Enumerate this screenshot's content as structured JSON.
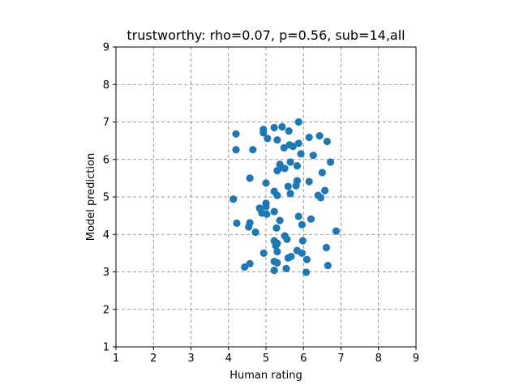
{
  "chart_data": {
    "type": "scatter",
    "title": "trustworthy: rho=0.07, p=0.56, sub=14,all",
    "xlabel": "Human rating",
    "ylabel": "Model prediction",
    "xlim": [
      1,
      9
    ],
    "ylim": [
      1,
      9
    ],
    "xticks": [
      "1",
      "2",
      "3",
      "4",
      "5",
      "6",
      "7",
      "8",
      "9"
    ],
    "yticks": [
      "1",
      "2",
      "3",
      "4",
      "5",
      "6",
      "7",
      "8",
      "9"
    ],
    "grid": true,
    "point_color": "#1f77b4",
    "points": [
      [
        4.2,
        6.68
      ],
      [
        4.2,
        6.26
      ],
      [
        4.65,
        6.26
      ],
      [
        4.93,
        6.8
      ],
      [
        4.93,
        6.71
      ],
      [
        5.04,
        6.56
      ],
      [
        5.22,
        6.85
      ],
      [
        5.3,
        6.52
      ],
      [
        5.43,
        6.87
      ],
      [
        5.61,
        6.76
      ],
      [
        5.87,
        7.0
      ],
      [
        5.48,
        6.31
      ],
      [
        5.63,
        6.39
      ],
      [
        5.72,
        6.35
      ],
      [
        5.87,
        6.43
      ],
      [
        6.15,
        6.59
      ],
      [
        6.43,
        6.63
      ],
      [
        6.63,
        6.48
      ],
      [
        5.93,
        6.15
      ],
      [
        6.26,
        6.11
      ],
      [
        6.72,
        5.93
      ],
      [
        5.37,
        5.87
      ],
      [
        5.5,
        5.76
      ],
      [
        5.65,
        5.93
      ],
      [
        5.83,
        5.83
      ],
      [
        5.3,
        5.7
      ],
      [
        5.4,
        5.78
      ],
      [
        6.5,
        5.65
      ],
      [
        4.57,
        5.5
      ],
      [
        5.83,
        5.43
      ],
      [
        6.15,
        5.41
      ],
      [
        5.0,
        5.37
      ],
      [
        5.59,
        5.28
      ],
      [
        5.8,
        5.3
      ],
      [
        5.22,
        5.15
      ],
      [
        5.3,
        5.04
      ],
      [
        5.65,
        5.09
      ],
      [
        6.39,
        5.04
      ],
      [
        6.46,
        4.98
      ],
      [
        6.57,
        5.17
      ],
      [
        4.13,
        4.94
      ],
      [
        5.0,
        4.83
      ],
      [
        5.0,
        4.74
      ],
      [
        4.83,
        4.7
      ],
      [
        4.89,
        4.57
      ],
      [
        5.02,
        4.54
      ],
      [
        5.22,
        4.61
      ],
      [
        5.87,
        4.48
      ],
      [
        6.2,
        4.41
      ],
      [
        5.37,
        4.37
      ],
      [
        5.96,
        4.26
      ],
      [
        4.22,
        4.3
      ],
      [
        4.57,
        4.31
      ],
      [
        4.54,
        4.2
      ],
      [
        4.72,
        4.06
      ],
      [
        5.28,
        4.17
      ],
      [
        5.5,
        3.96
      ],
      [
        5.56,
        3.87
      ],
      [
        5.98,
        3.83
      ],
      [
        6.87,
        4.09
      ],
      [
        5.22,
        3.83
      ],
      [
        5.3,
        3.76
      ],
      [
        5.26,
        3.7
      ],
      [
        5.83,
        3.57
      ],
      [
        5.96,
        3.5
      ],
      [
        6.61,
        3.65
      ],
      [
        4.94,
        3.5
      ],
      [
        5.3,
        3.54
      ],
      [
        5.59,
        3.37
      ],
      [
        5.67,
        3.41
      ],
      [
        6.09,
        3.33
      ],
      [
        4.57,
        3.22
      ],
      [
        4.43,
        3.13
      ],
      [
        5.22,
        3.28
      ],
      [
        5.3,
        3.24
      ],
      [
        5.54,
        3.09
      ],
      [
        5.22,
        3.04
      ],
      [
        6.07,
        2.99
      ],
      [
        6.65,
        3.17
      ]
    ]
  }
}
